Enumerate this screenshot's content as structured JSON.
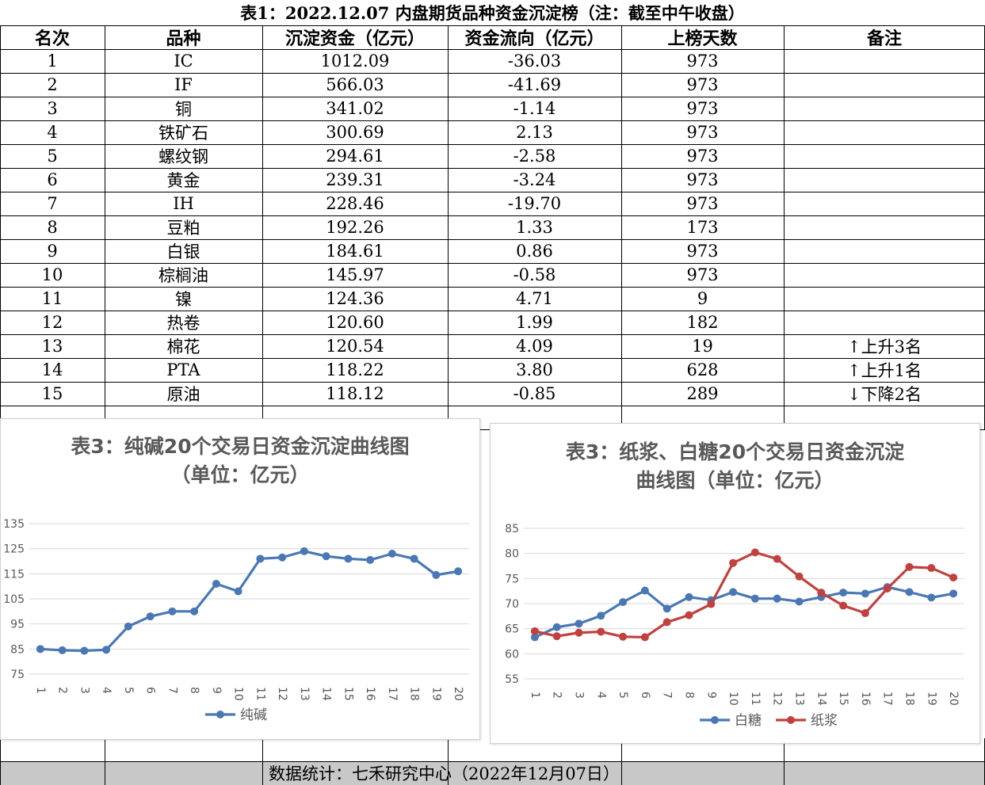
{
  "table": {
    "title": "表1：2022.12.07 内盘期货品种资金沉淀榜（注：截至中午收盘）",
    "headers": [
      "名次",
      "品种",
      "沉淀资金（亿元）",
      "资金流向（亿元）",
      "上榜天数",
      "备注"
    ],
    "rows": [
      [
        "1",
        "IC",
        "1012.09",
        "-36.03",
        "973",
        ""
      ],
      [
        "2",
        "IF",
        "566.03",
        "-41.69",
        "973",
        ""
      ],
      [
        "3",
        "铜",
        "341.02",
        "-1.14",
        "973",
        ""
      ],
      [
        "4",
        "铁矿石",
        "300.69",
        "2.13",
        "973",
        ""
      ],
      [
        "5",
        "螺纹钢",
        "294.61",
        "-2.58",
        "973",
        ""
      ],
      [
        "6",
        "黄金",
        "239.31",
        "-3.24",
        "973",
        ""
      ],
      [
        "7",
        "IH",
        "228.46",
        "-19.70",
        "973",
        ""
      ],
      [
        "8",
        "豆粕",
        "192.26",
        "1.33",
        "173",
        ""
      ],
      [
        "9",
        "白银",
        "184.61",
        "0.86",
        "973",
        ""
      ],
      [
        "10",
        "棕榈油",
        "145.97",
        "-0.58",
        "973",
        ""
      ],
      [
        "11",
        "镍",
        "124.36",
        "4.71",
        "9",
        ""
      ],
      [
        "12",
        "热卷",
        "120.60",
        "1.99",
        "182",
        ""
      ],
      [
        "13",
        "棉花",
        "120.54",
        "4.09",
        "19",
        "↑上升3名"
      ],
      [
        "14",
        "PTA",
        "118.22",
        "3.80",
        "628",
        "↑上升1名"
      ],
      [
        "15",
        "原油",
        "118.12",
        "-0.85",
        "289",
        "↓下降2名"
      ]
    ],
    "footer": "数据统计：七禾研究中心（2022年12月07日）"
  },
  "colors": {
    "blue": "#4a78b4",
    "red": "#c0413f",
    "grid": "#d9d9d9",
    "footer_bg": "#c8c8c8"
  },
  "chart_data": [
    {
      "type": "line",
      "title": "表3：纯碱20个交易日资金沉淀曲线图",
      "subtitle": "（单位：亿元）",
      "categories": [
        "1",
        "2",
        "3",
        "4",
        "5",
        "6",
        "7",
        "8",
        "9",
        "10",
        "11",
        "12",
        "13",
        "14",
        "15",
        "16",
        "17",
        "18",
        "19",
        "20"
      ],
      "series": [
        {
          "name": "纯碱",
          "color": "#4a78b4",
          "values": [
            85,
            84.5,
            84.3,
            84.7,
            94,
            98,
            100,
            100,
            111,
            108,
            121,
            121.5,
            124,
            122,
            121,
            120.5,
            123,
            121,
            114.5,
            116
          ]
        }
      ],
      "ylim": [
        75,
        135
      ],
      "yticks": [
        75,
        85,
        95,
        105,
        115,
        125,
        135
      ],
      "grid": true,
      "legend": "bottom"
    },
    {
      "type": "line",
      "title": "表3：纸浆、白糖20个交易日资金沉淀",
      "subtitle": "曲线图（单位：亿元）",
      "categories": [
        "1",
        "2",
        "3",
        "4",
        "5",
        "6",
        "7",
        "8",
        "9",
        "10",
        "11",
        "12",
        "13",
        "14",
        "15",
        "16",
        "17",
        "18",
        "19",
        "20"
      ],
      "series": [
        {
          "name": "白糖",
          "color": "#4a78b4",
          "values": [
            63.3,
            65.3,
            66.0,
            67.6,
            70.3,
            72.6,
            69.0,
            71.3,
            70.7,
            72.3,
            71.0,
            71.0,
            70.4,
            71.3,
            72.2,
            72.0,
            73.3,
            72.3,
            71.2,
            72.0
          ]
        },
        {
          "name": "纸浆",
          "color": "#c0413f",
          "values": [
            64.5,
            63.5,
            64.2,
            64.4,
            63.4,
            63.3,
            66.3,
            67.7,
            69.9,
            78.1,
            80.2,
            78.9,
            75.4,
            72.2,
            69.6,
            68.1,
            73.0,
            77.3,
            77.1,
            75.2
          ]
        }
      ],
      "ylim": [
        55,
        85
      ],
      "yticks": [
        55,
        60,
        65,
        70,
        75,
        80,
        85
      ],
      "grid": true,
      "legend": "bottom"
    }
  ]
}
